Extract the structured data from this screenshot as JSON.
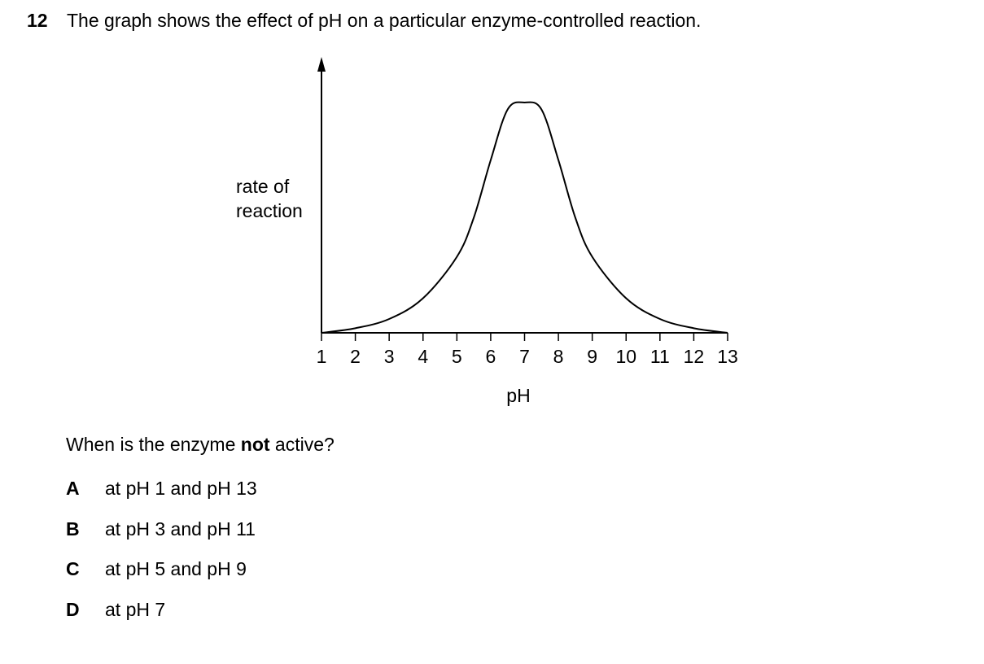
{
  "question": {
    "number": "12",
    "text": "The graph shows the effect of pH on a particular enzyme-controlled reaction.",
    "prompt_before": "When is the enzyme ",
    "prompt_bold": "not",
    "prompt_after": " active?",
    "options": [
      {
        "letter": "A",
        "text": "at pH 1 and pH 13"
      },
      {
        "letter": "B",
        "text": "at pH 3 and pH 11"
      },
      {
        "letter": "C",
        "text": "at pH 5 and pH 9"
      },
      {
        "letter": "D",
        "text": "at pH 7"
      }
    ]
  },
  "chart_data": {
    "type": "line",
    "xlabel": "pH",
    "ylabel_lines": [
      "rate of",
      "reaction"
    ],
    "xlim": [
      1,
      13
    ],
    "ylim": [
      0,
      1.06
    ],
    "xticks": [
      1,
      2,
      3,
      4,
      5,
      6,
      7,
      8,
      9,
      10,
      11,
      12,
      13
    ],
    "y_axis_arrow": true,
    "grid": false,
    "series": [
      {
        "x": [
          1,
          2,
          3,
          4,
          5,
          5.5,
          6,
          6.5,
          7,
          7.5,
          8,
          8.5,
          9,
          10,
          11,
          12,
          13
        ],
        "y": [
          0.0,
          0.02,
          0.06,
          0.15,
          0.33,
          0.5,
          0.75,
          0.97,
          1.0,
          0.97,
          0.75,
          0.5,
          0.33,
          0.15,
          0.06,
          0.02,
          0.0
        ]
      }
    ]
  }
}
